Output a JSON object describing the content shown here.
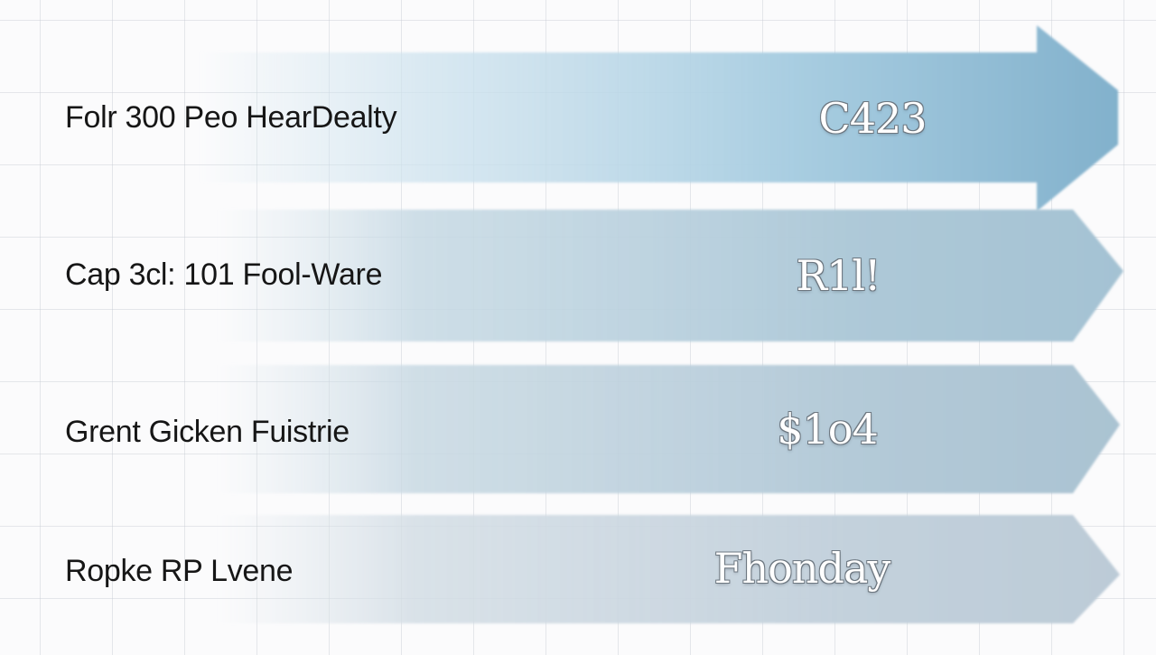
{
  "rows": [
    {
      "label": "Folr 300 Peo HearDealty",
      "value": "C423"
    },
    {
      "label": "Cap 3cl: 101 Fool-Ware",
      "value": "R1l!"
    },
    {
      "label": "Grent Gicken Fuistrie",
      "value": "$1o4"
    },
    {
      "label": "Ropke RP Lvene",
      "value": "Fhonday"
    }
  ],
  "colors": {
    "arrow_primary": "#8fbcd6",
    "band_shade": "#a9c4d2",
    "band_light": "#c9d6df",
    "label_text": "#161616",
    "value_text": "#ffffff"
  }
}
